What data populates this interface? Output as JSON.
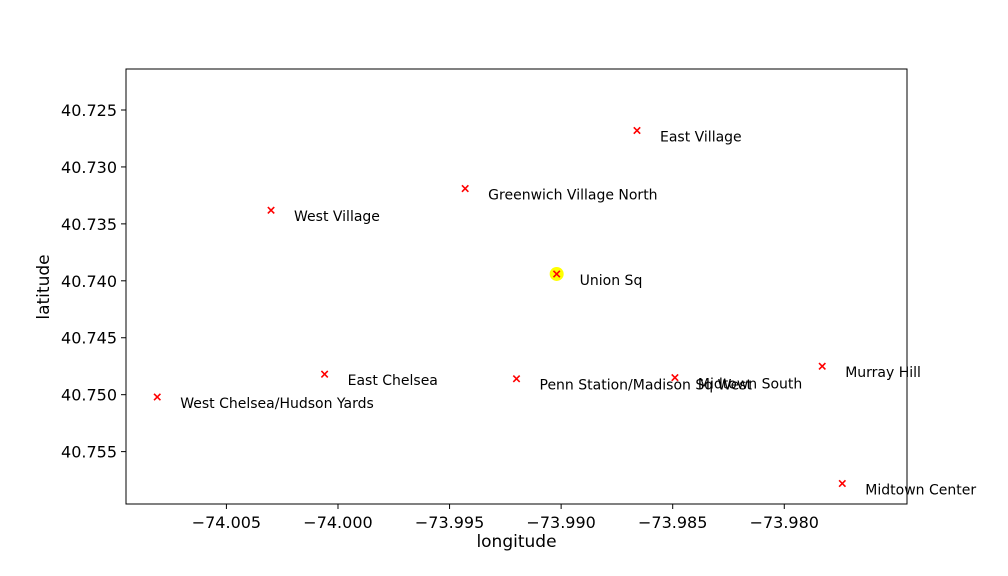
{
  "chart_data": {
    "type": "scatter",
    "xlabel": "longitude",
    "ylabel": "latitude",
    "xlim": [
      -74.0095,
      -73.9745
    ],
    "ylim": [
      40.7214,
      40.7596
    ],
    "y_inverted": true,
    "grid": false,
    "x_ticks": [
      -74.005,
      -74.0,
      -73.995,
      -73.99,
      -73.985,
      -73.98
    ],
    "x_tick_labels": [
      "−74.005",
      "−74.000",
      "−73.995",
      "−73.990",
      "−73.985",
      "−73.980"
    ],
    "y_ticks": [
      40.725,
      40.73,
      40.735,
      40.74,
      40.745,
      40.75,
      40.755
    ],
    "y_tick_labels": [
      "40.725",
      "40.730",
      "40.735",
      "40.740",
      "40.745",
      "40.750",
      "40.755"
    ],
    "marker": "x",
    "marker_color": "#ff0000",
    "highlight_color": "#ffff00",
    "points": [
      {
        "label": "East Village",
        "x": -73.9866,
        "y": 40.7268
      },
      {
        "label": "Greenwich Village North",
        "x": -73.9943,
        "y": 40.7319
      },
      {
        "label": "West Village",
        "x": -74.003,
        "y": 40.7338
      },
      {
        "label": "Union Sq",
        "x": -73.9902,
        "y": 40.7394,
        "highlight": true
      },
      {
        "label": "Murray Hill",
        "x": -73.9783,
        "y": 40.7475
      },
      {
        "label": "East Chelsea",
        "x": -74.0006,
        "y": 40.7482
      },
      {
        "label": "Penn Station/Madison Sq West",
        "x": -73.992,
        "y": 40.7486
      },
      {
        "label": "Midtown South",
        "x": -73.9849,
        "y": 40.7485
      },
      {
        "label": "West Chelsea/Hudson Yards",
        "x": -74.0081,
        "y": 40.7502
      },
      {
        "label": "Midtown Center",
        "x": -73.9774,
        "y": 40.7578
      }
    ]
  }
}
